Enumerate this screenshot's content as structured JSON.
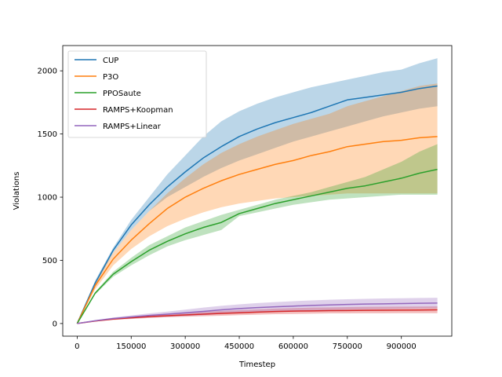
{
  "chart_data": {
    "type": "line",
    "title": "",
    "xlabel": "Timestep",
    "ylabel": "Violations",
    "xlim": [
      -40000,
      1040000
    ],
    "ylim": [
      -100,
      2200
    ],
    "xticks": [
      0,
      150000,
      300000,
      450000,
      600000,
      750000,
      900000
    ],
    "xtick_labels": [
      "0",
      "150000",
      "300000",
      "450000",
      "600000",
      "750000",
      "900000"
    ],
    "yticks": [
      0,
      500,
      1000,
      1500,
      2000
    ],
    "ytick_labels": [
      "0",
      "500",
      "1000",
      "1500",
      "2000"
    ],
    "grid": false,
    "legend_position": "upper-left",
    "x": [
      0,
      50000,
      100000,
      150000,
      200000,
      250000,
      300000,
      350000,
      400000,
      450000,
      500000,
      550000,
      600000,
      650000,
      700000,
      750000,
      800000,
      850000,
      900000,
      950000,
      1000000
    ],
    "series": [
      {
        "name": "CUP",
        "color": "#1f77b4",
        "values": [
          0,
          320,
          580,
          780,
          940,
          1080,
          1200,
          1310,
          1400,
          1480,
          1540,
          1590,
          1630,
          1670,
          1720,
          1770,
          1790,
          1810,
          1830,
          1860,
          1880
        ],
        "upper": [
          0,
          340,
          600,
          820,
          1000,
          1180,
          1330,
          1480,
          1600,
          1680,
          1740,
          1790,
          1830,
          1870,
          1900,
          1930,
          1960,
          1990,
          2010,
          2060,
          2100
        ],
        "lower": [
          0,
          300,
          560,
          740,
          890,
          1000,
          1080,
          1160,
          1230,
          1290,
          1340,
          1390,
          1440,
          1480,
          1520,
          1560,
          1600,
          1640,
          1670,
          1700,
          1720
        ]
      },
      {
        "name": "P3O",
        "color": "#ff7f0e",
        "values": [
          0,
          300,
          510,
          660,
          790,
          910,
          1000,
          1070,
          1130,
          1180,
          1220,
          1260,
          1290,
          1330,
          1360,
          1400,
          1420,
          1440,
          1450,
          1470,
          1480
        ],
        "upper": [
          0,
          330,
          560,
          740,
          890,
          1030,
          1150,
          1260,
          1350,
          1420,
          1480,
          1530,
          1580,
          1620,
          1660,
          1720,
          1760,
          1800,
          1840,
          1880,
          1900
        ],
        "lower": [
          0,
          270,
          460,
          590,
          690,
          770,
          830,
          880,
          920,
          950,
          970,
          990,
          1000,
          1010,
          1020,
          1030,
          1030,
          1030,
          1030,
          1030,
          1030
        ]
      },
      {
        "name": "PPOSaute",
        "color": "#2ca02c",
        "values": [
          0,
          240,
          390,
          490,
          580,
          650,
          710,
          760,
          800,
          870,
          910,
          950,
          980,
          1010,
          1040,
          1070,
          1090,
          1120,
          1150,
          1190,
          1220
        ],
        "upper": [
          0,
          250,
          410,
          520,
          620,
          690,
          760,
          810,
          860,
          900,
          940,
          980,
          1010,
          1040,
          1080,
          1120,
          1160,
          1220,
          1280,
          1360,
          1420
        ],
        "lower": [
          0,
          230,
          370,
          460,
          540,
          610,
          660,
          700,
          740,
          850,
          880,
          910,
          940,
          960,
          980,
          990,
          1000,
          1010,
          1020,
          1020,
          1020
        ]
      },
      {
        "name": "RAMPS+Koopman",
        "color": "#d62728",
        "values": [
          0,
          20,
          35,
          45,
          55,
          62,
          68,
          74,
          80,
          85,
          90,
          95,
          98,
          100,
          102,
          103,
          104,
          105,
          106,
          107,
          108
        ],
        "upper": [
          0,
          24,
          42,
          54,
          66,
          76,
          84,
          92,
          100,
          106,
          112,
          118,
          122,
          126,
          128,
          130,
          132,
          133,
          134,
          135,
          136
        ],
        "lower": [
          0,
          16,
          28,
          36,
          44,
          50,
          54,
          58,
          62,
          66,
          70,
          74,
          76,
          78,
          80,
          80,
          81,
          81,
          82,
          82,
          82
        ]
      },
      {
        "name": "RAMPS+Linear",
        "color": "#9467bd",
        "values": [
          0,
          22,
          40,
          52,
          64,
          74,
          85,
          96,
          108,
          118,
          126,
          132,
          138,
          143,
          147,
          151,
          154,
          156,
          158,
          160,
          162
        ],
        "upper": [
          0,
          26,
          48,
          64,
          80,
          94,
          110,
          126,
          140,
          152,
          162,
          170,
          177,
          183,
          188,
          192,
          195,
          198,
          200,
          202,
          204
        ],
        "lower": [
          0,
          18,
          32,
          40,
          48,
          54,
          60,
          66,
          76,
          84,
          90,
          94,
          98,
          102,
          106,
          110,
          112,
          114,
          116,
          118,
          120
        ]
      }
    ]
  }
}
